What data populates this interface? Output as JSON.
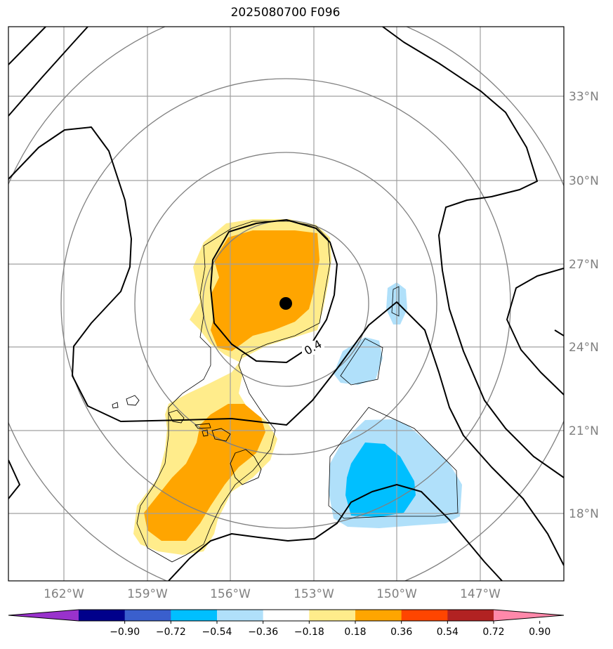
{
  "title": "2025080700 F096",
  "map": {
    "lon_labels": [
      "162°W",
      "159°W",
      "156°W",
      "153°W",
      "150°W",
      "147°W"
    ],
    "lat_labels": [
      "33°N",
      "30°N",
      "27°N",
      "24°N",
      "21°N",
      "18°N"
    ],
    "contour_label": "0.4",
    "grid": true,
    "center_marker": "filled-black-circle"
  },
  "colorbar": {
    "ticks": [
      "−0.90",
      "−0.72",
      "−0.54",
      "−0.36",
      "−0.18",
      "0.18",
      "0.36",
      "0.54",
      "0.72",
      "0.90"
    ],
    "colors": [
      "#9932cc",
      "#00008b",
      "#3a5fcd",
      "#00bfff",
      "#b0e0fa",
      "#ffffff",
      "#ffec8b",
      "#ffa500",
      "#ff4500",
      "#b22222",
      "#ff88aa"
    ],
    "extend": "both"
  }
}
